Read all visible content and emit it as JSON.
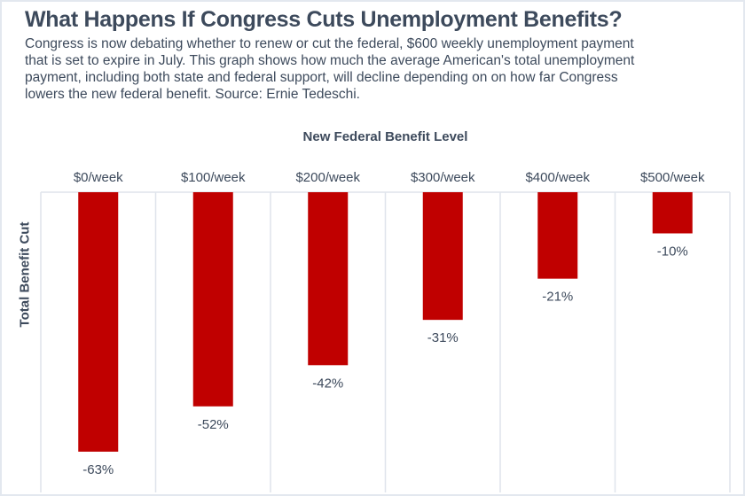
{
  "title": "What Happens If Congress Cuts Unemployment Benefits?",
  "description": "Congress is now debating whether to renew or cut the federal, $600 weekly unemployment payment that is set to expire in July. This graph shows how much the average American's total unemployment payment, including both state and federal support, will decline depending on on how far Congress lowers the new federal benefit. Source: Ernie Tedeschi.",
  "chart_data": {
    "type": "bar",
    "xlabel": "New Federal Benefit Level",
    "ylabel": "Total Benefit Cut",
    "categories": [
      "$0/week",
      "$100/week",
      "$200/week",
      "$300/week",
      "$400/week",
      "$500/week"
    ],
    "values": [
      -63,
      -52,
      -42,
      -31,
      -21,
      -10
    ],
    "data_labels": [
      "-63%",
      "-52%",
      "-42%",
      "-31%",
      "-21%",
      "-10%"
    ],
    "unit": "%",
    "bar_color": "#c00000",
    "orientation": "downward bars, small multiples per category",
    "grid": true
  }
}
